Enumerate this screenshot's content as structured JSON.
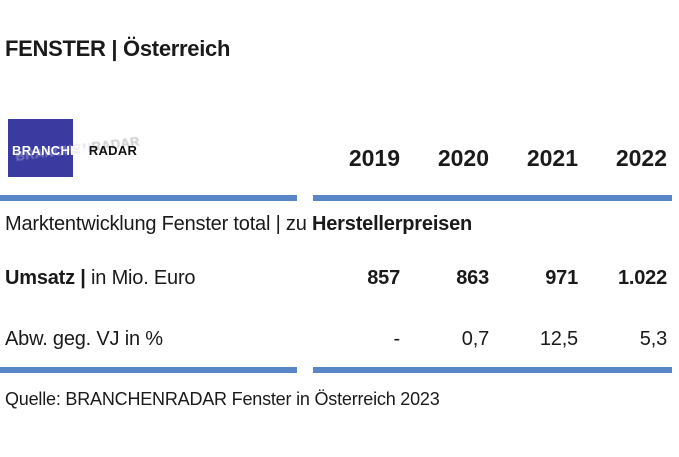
{
  "header": {
    "title": "FENSTER | Österreich"
  },
  "logo": {
    "part1": "BRANCHEN",
    "part2": "RADAR"
  },
  "table": {
    "years": [
      "2019",
      "2020",
      "2021",
      "2022"
    ],
    "section_regular": "Marktentwicklung Fenster total | zu ",
    "section_bold": "Herstellerpreisen",
    "rows": [
      {
        "label_bold": "Umsatz | ",
        "label_regular": "in Mio. Euro",
        "values": [
          "857",
          "863",
          "971",
          "1.022"
        ]
      },
      {
        "label_bold": "",
        "label_regular": "Abw. geg. VJ in %",
        "values": [
          "-",
          "0,7",
          "12,5",
          "5,3"
        ]
      }
    ]
  },
  "footer": {
    "source": "Quelle: BRANCHENRADAR Fenster in Österreich 2023"
  },
  "colors": {
    "accent_blue": "#5886C6",
    "logo_blue": "#3A3AA0",
    "text": "#1A1A1A"
  },
  "chart_data": {
    "type": "table",
    "title": "FENSTER | Österreich",
    "section": "Marktentwicklung Fenster total | zu Herstellerpreisen",
    "columns": [
      "2019",
      "2020",
      "2021",
      "2022"
    ],
    "rows": [
      {
        "label": "Umsatz | in Mio. Euro",
        "values": [
          857,
          863,
          971,
          1022
        ]
      },
      {
        "label": "Abw. geg. VJ in %",
        "values": [
          null,
          0.7,
          12.5,
          5.3
        ]
      }
    ],
    "source": "Quelle: BRANCHENRADAR Fenster in Österreich 2023"
  }
}
